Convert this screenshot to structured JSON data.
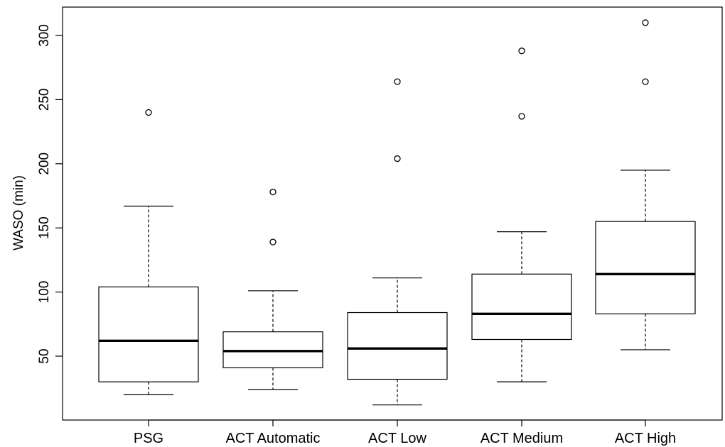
{
  "chart_data": {
    "type": "boxplot",
    "ylabel": "WASO (min)",
    "xlabel": "",
    "ylim": [
      0,
      320
    ],
    "yticks": [
      50,
      100,
      150,
      200,
      250,
      300
    ],
    "categories": [
      "PSG",
      "ACT Automatic",
      "ACT Low",
      "ACT Medium",
      "ACT High"
    ],
    "boxes": [
      {
        "name": "PSG",
        "whisker_low": 20,
        "q1": 30,
        "median": 62,
        "q3": 104,
        "whisker_high": 167,
        "outliers": [
          240
        ]
      },
      {
        "name": "ACT Automatic",
        "whisker_low": 24,
        "q1": 41,
        "median": 54,
        "q3": 69,
        "whisker_high": 101,
        "outliers": [
          139,
          178
        ]
      },
      {
        "name": "ACT Low",
        "whisker_low": 12,
        "q1": 32,
        "median": 56,
        "q3": 84,
        "whisker_high": 111,
        "outliers": [
          204,
          264
        ]
      },
      {
        "name": "ACT Medium",
        "whisker_low": 30,
        "q1": 63,
        "median": 83,
        "q3": 114,
        "whisker_high": 147,
        "outliers": [
          237,
          288
        ]
      },
      {
        "name": "ACT High",
        "whisker_low": 55,
        "q1": 83,
        "median": 114,
        "q3": 155,
        "whisker_high": 195,
        "outliers": [
          264,
          310
        ]
      }
    ],
    "grid": false,
    "legend": "none"
  }
}
